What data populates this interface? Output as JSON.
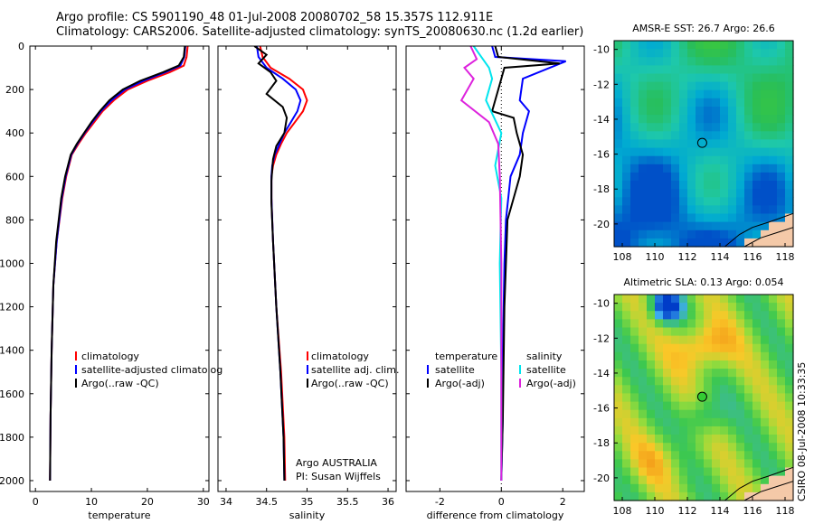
{
  "header": {
    "line1": "Argo profile: CS 5901190_48 01-Jul-2008 20080702_58 15.357S 112.911E",
    "line2": "Climatology: CARS2006. Satellite-adjusted climatology: synTS_20080630.nc (1.2d earlier)"
  },
  "side_text": "CSIRO 08-Jul-2008 10:33:35",
  "colors": {
    "black": "#000000",
    "red": "#ff0000",
    "blue": "#0000ff",
    "cyan": "#00e5ee",
    "magenta": "#dd22dd",
    "axis": "#000000"
  },
  "chart_data": [
    {
      "type": "line",
      "xlabel": "temperature",
      "ylabel": "",
      "xlim": [
        -1,
        31
      ],
      "ylim": [
        2050,
        0
      ],
      "y_reversed": true,
      "xticks": [
        0,
        10,
        20,
        30
      ],
      "yticks": [
        0,
        200,
        400,
        600,
        800,
        1000,
        1200,
        1400,
        1600,
        1800,
        2000
      ],
      "legend": [
        "climatology",
        "satellite-adjusted climatolog",
        "Argo(..raw -QC)"
      ],
      "legend_colors": [
        "red",
        "blue",
        "black"
      ],
      "series": [
        {
          "color": "red",
          "x": [
            27.2,
            27.0,
            26.5,
            24.0,
            20.0,
            16.5,
            14.0,
            12.0,
            10.5,
            9.0,
            7.7,
            6.5,
            5.5,
            4.8,
            3.8,
            3.2,
            2.9,
            2.7,
            2.6
          ],
          "y": [
            0,
            50,
            90,
            120,
            160,
            200,
            250,
            300,
            350,
            400,
            450,
            500,
            600,
            700,
            900,
            1100,
            1400,
            1700,
            2000
          ]
        },
        {
          "color": "blue",
          "x": [
            26.8,
            26.6,
            25.9,
            23.2,
            19.3,
            16.0,
            13.6,
            11.7,
            10.2,
            8.8,
            7.5,
            6.4,
            5.4,
            4.7,
            3.8,
            3.2,
            2.9,
            2.7,
            2.6
          ],
          "y": [
            0,
            50,
            90,
            120,
            160,
            200,
            250,
            300,
            350,
            400,
            450,
            500,
            600,
            700,
            900,
            1100,
            1400,
            1700,
            2000
          ]
        },
        {
          "color": "black",
          "x": [
            26.7,
            26.5,
            25.6,
            22.8,
            18.7,
            15.6,
            13.2,
            11.5,
            10.0,
            8.7,
            7.4,
            6.3,
            5.3,
            4.6,
            3.7,
            3.2,
            2.9,
            2.7,
            2.6
          ],
          "y": [
            0,
            50,
            90,
            120,
            160,
            200,
            250,
            300,
            350,
            400,
            450,
            500,
            600,
            700,
            900,
            1100,
            1400,
            1700,
            2000
          ]
        }
      ]
    },
    {
      "type": "line",
      "xlabel": "salinity",
      "xlim": [
        33.9,
        36.1
      ],
      "ylim": [
        2050,
        0
      ],
      "y_reversed": true,
      "xticks": [
        34,
        34.5,
        35,
        35.5,
        36
      ],
      "legend": [
        "climatology",
        "satellite adj. clim.",
        "Argo(..raw -QC)"
      ],
      "legend_colors": [
        "red",
        "blue",
        "black"
      ],
      "annotation": [
        "Argo AUSTRALIA",
        "PI: Susan Wijffels"
      ],
      "series": [
        {
          "color": "red",
          "x": [
            34.42,
            34.45,
            34.55,
            34.78,
            34.95,
            35.0,
            34.95,
            34.85,
            34.75,
            34.68,
            34.62,
            34.58,
            34.56,
            34.56,
            34.58,
            34.62,
            34.68,
            34.72,
            34.73
          ],
          "y": [
            0,
            50,
            100,
            150,
            200,
            250,
            300,
            350,
            400,
            450,
            500,
            550,
            600,
            700,
            900,
            1200,
            1500,
            1800,
            2000
          ]
        },
        {
          "color": "blue",
          "x": [
            34.38,
            34.4,
            34.5,
            34.7,
            34.86,
            34.92,
            34.88,
            34.8,
            34.72,
            34.66,
            34.6,
            34.57,
            34.56,
            34.56,
            34.58,
            34.62,
            34.67,
            34.71,
            34.72
          ],
          "y": [
            0,
            50,
            100,
            150,
            200,
            250,
            300,
            350,
            400,
            450,
            500,
            550,
            600,
            700,
            900,
            1200,
            1500,
            1800,
            2000
          ]
        },
        {
          "color": "black",
          "x": [
            34.35,
            34.5,
            34.4,
            34.55,
            34.62,
            34.5,
            34.7,
            34.75,
            34.72,
            34.62,
            34.58,
            34.57,
            34.56,
            34.56,
            34.58,
            34.62,
            34.67,
            34.71,
            34.72
          ],
          "y": [
            0,
            40,
            80,
            120,
            160,
            220,
            280,
            330,
            400,
            460,
            520,
            570,
            620,
            720,
            900,
            1200,
            1500,
            1800,
            2000
          ]
        }
      ]
    },
    {
      "type": "line",
      "xlabel": "difference from climatology",
      "xlim": [
        -3.1,
        2.7
      ],
      "ylim": [
        2050,
        0
      ],
      "y_reversed": true,
      "xticks": [
        -2,
        0,
        2
      ],
      "legend_left": {
        "title": "temperature",
        "items": [
          "satellite",
          "Argo(-adj)"
        ],
        "colors": [
          "blue",
          "black"
        ]
      },
      "legend_right": {
        "title": "salinity",
        "items": [
          "satellite",
          "Argo(-adj)"
        ],
        "colors": [
          "cyan",
          "magenta"
        ]
      },
      "zero_line": true,
      "series": [
        {
          "color": "blue",
          "x": [
            -0.3,
            -0.2,
            2.1,
            0.7,
            0.6,
            0.9,
            0.7,
            0.6,
            0.3,
            0.15,
            0.1,
            0.05,
            0.05,
            0.0
          ],
          "y": [
            0,
            50,
            70,
            150,
            250,
            300,
            400,
            500,
            600,
            800,
            1000,
            1400,
            1700,
            2000
          ]
        },
        {
          "color": "black",
          "x": [
            -0.2,
            -0.1,
            1.9,
            0.1,
            0.0,
            -0.1,
            -0.3,
            0.4,
            0.5,
            0.7,
            0.6,
            0.2,
            0.1,
            0.05,
            0.0
          ],
          "y": [
            0,
            50,
            80,
            100,
            150,
            200,
            300,
            330,
            400,
            500,
            600,
            800,
            1200,
            1700,
            2000
          ]
        },
        {
          "color": "cyan",
          "x": [
            -0.9,
            -0.6,
            -0.4,
            -0.3,
            -0.5,
            0.0,
            -0.2,
            0.0,
            -0.05,
            0.0,
            0.0
          ],
          "y": [
            0,
            60,
            100,
            150,
            250,
            400,
            550,
            700,
            1000,
            1500,
            2000
          ]
        },
        {
          "color": "magenta",
          "x": [
            -1.0,
            -0.8,
            -1.2,
            -0.9,
            -1.3,
            -0.4,
            -0.1,
            -0.05,
            0.0,
            0.0
          ],
          "y": [
            0,
            60,
            100,
            150,
            250,
            350,
            450,
            600,
            1000,
            2000
          ]
        }
      ]
    },
    {
      "type": "heatmap",
      "title": "AMSR-E SST: 26.7 Argo: 26.6",
      "xlim": [
        107.5,
        118.5
      ],
      "ylim": [
        -21.3,
        -9.5
      ],
      "xticks": [
        108,
        110,
        112,
        114,
        116,
        118
      ],
      "yticks": [
        -10,
        -12,
        -14,
        -16,
        -18,
        -20
      ],
      "marker": {
        "lon": 112.911,
        "lat": -15.357,
        "fill": "none"
      }
    },
    {
      "type": "heatmap",
      "title": "Altimetric SLA: 0.13 Argo: 0.054",
      "xlim": [
        107.5,
        118.5
      ],
      "ylim": [
        -21.3,
        -9.5
      ],
      "xticks": [
        108,
        110,
        112,
        114,
        116,
        118
      ],
      "yticks": [
        -10,
        -12,
        -14,
        -16,
        -18,
        -20
      ],
      "marker": {
        "lon": 112.911,
        "lat": -15.357,
        "fill": "#33cc33"
      }
    }
  ]
}
